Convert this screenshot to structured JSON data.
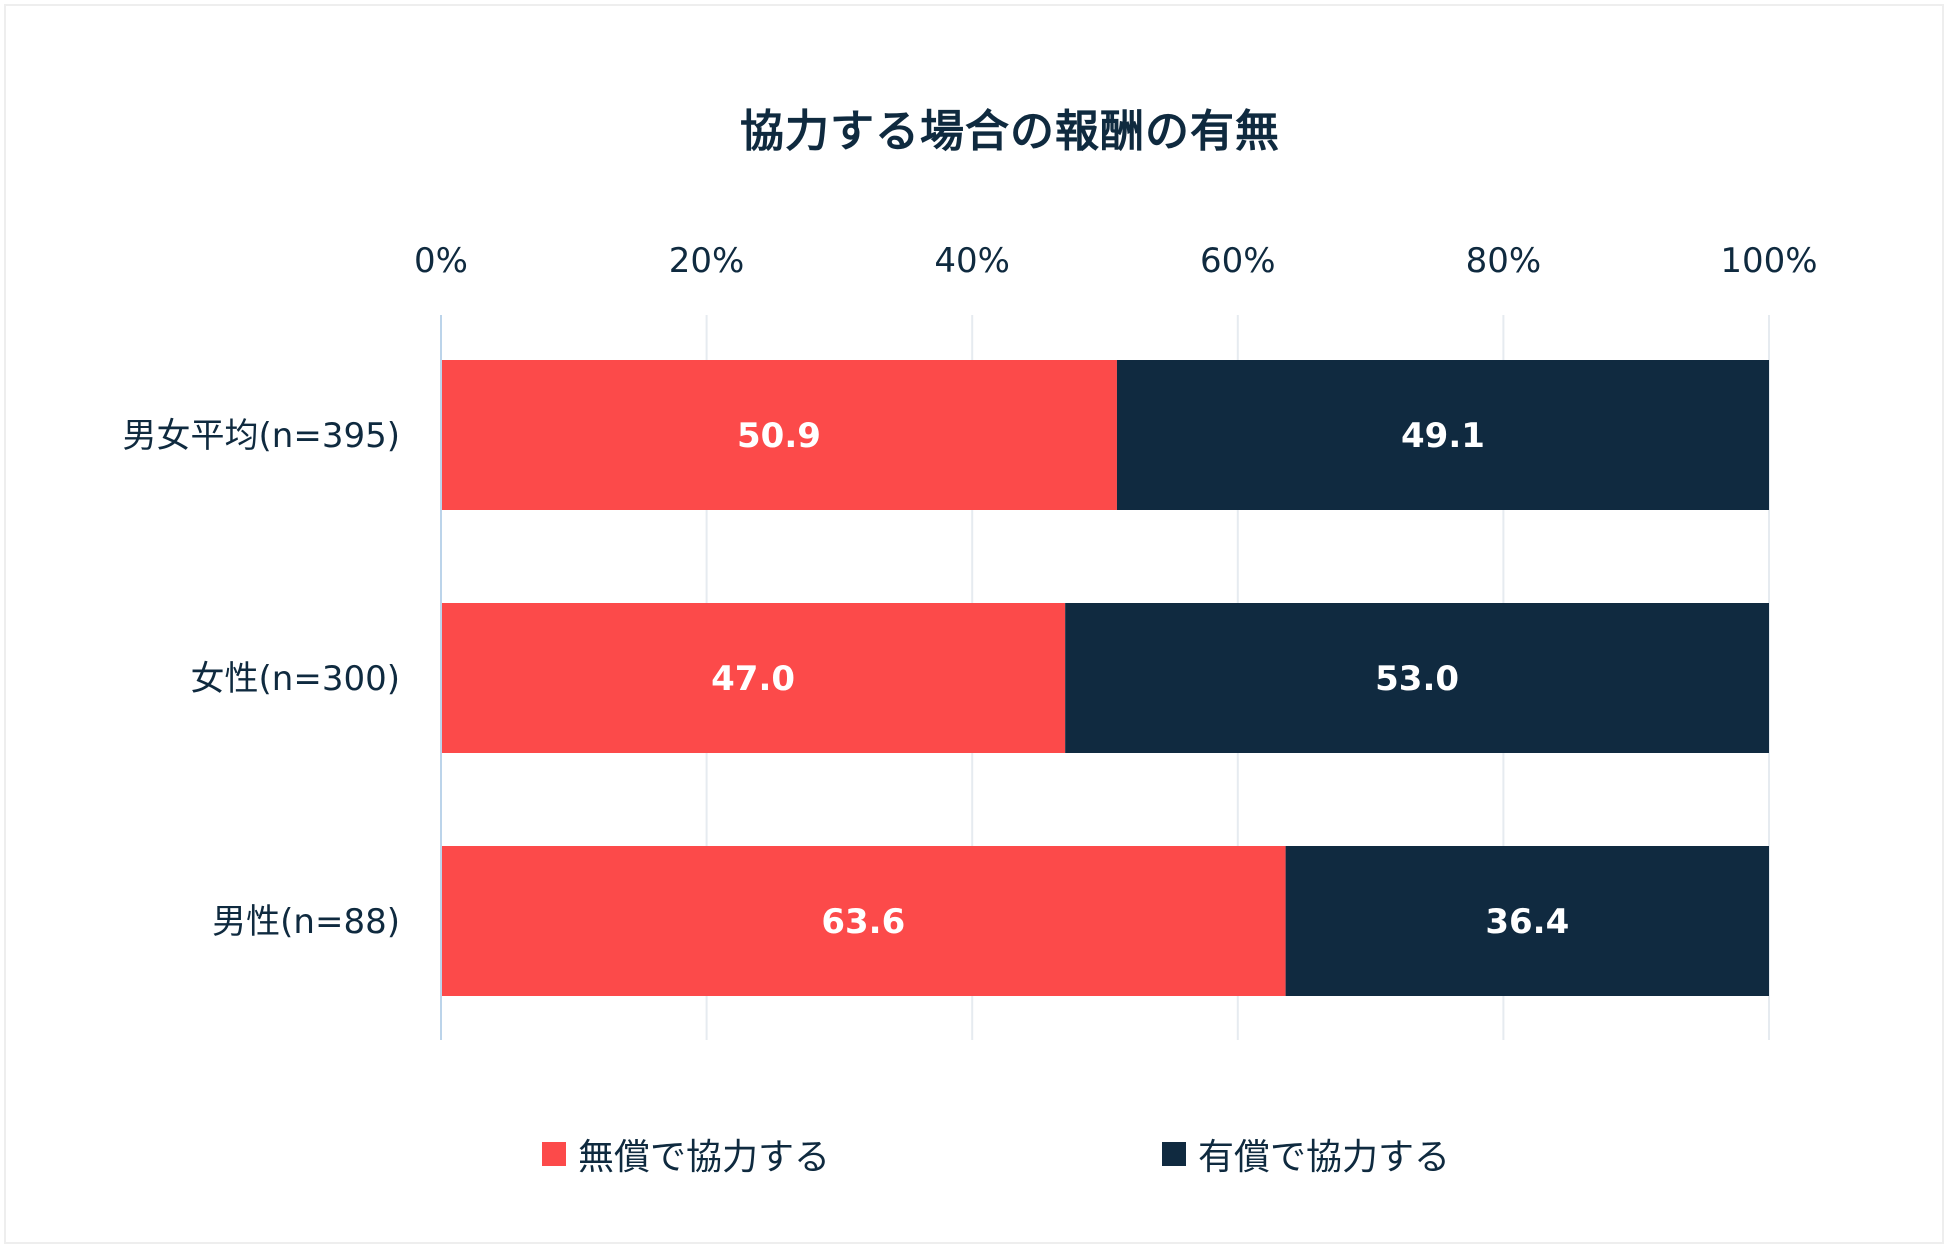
{
  "chart_data": {
    "type": "bar",
    "orientation": "horizontal",
    "stacked": true,
    "title": "協力する場合の報酬の有無",
    "categories": [
      "男女平均(n=395)",
      "女性(n=300)",
      "男性(n=88)"
    ],
    "series": [
      {
        "name": "無償で協力する",
        "color": "#fc4a4a",
        "values": [
          50.9,
          47.0,
          63.6
        ],
        "labels": [
          "50.9",
          "47.0",
          "63.6"
        ]
      },
      {
        "name": "有償で協力する",
        "color": "#102a40",
        "values": [
          49.1,
          53.0,
          36.4
        ],
        "labels": [
          "49.1",
          "53.0",
          "36.4"
        ]
      }
    ],
    "xlim": [
      0,
      100
    ],
    "xticks": [
      0,
      20,
      40,
      60,
      80,
      100
    ],
    "xtick_labels": [
      "0%",
      "20%",
      "40%",
      "60%",
      "80%",
      "100%"
    ],
    "xlabel": "",
    "ylabel": "",
    "grid": true,
    "legend_position": "bottom",
    "colors": {
      "grid": "#e6ebf0",
      "axis": "#bcd4ea",
      "text": "#0f2a3f",
      "bar_label": "#ffffff"
    }
  }
}
